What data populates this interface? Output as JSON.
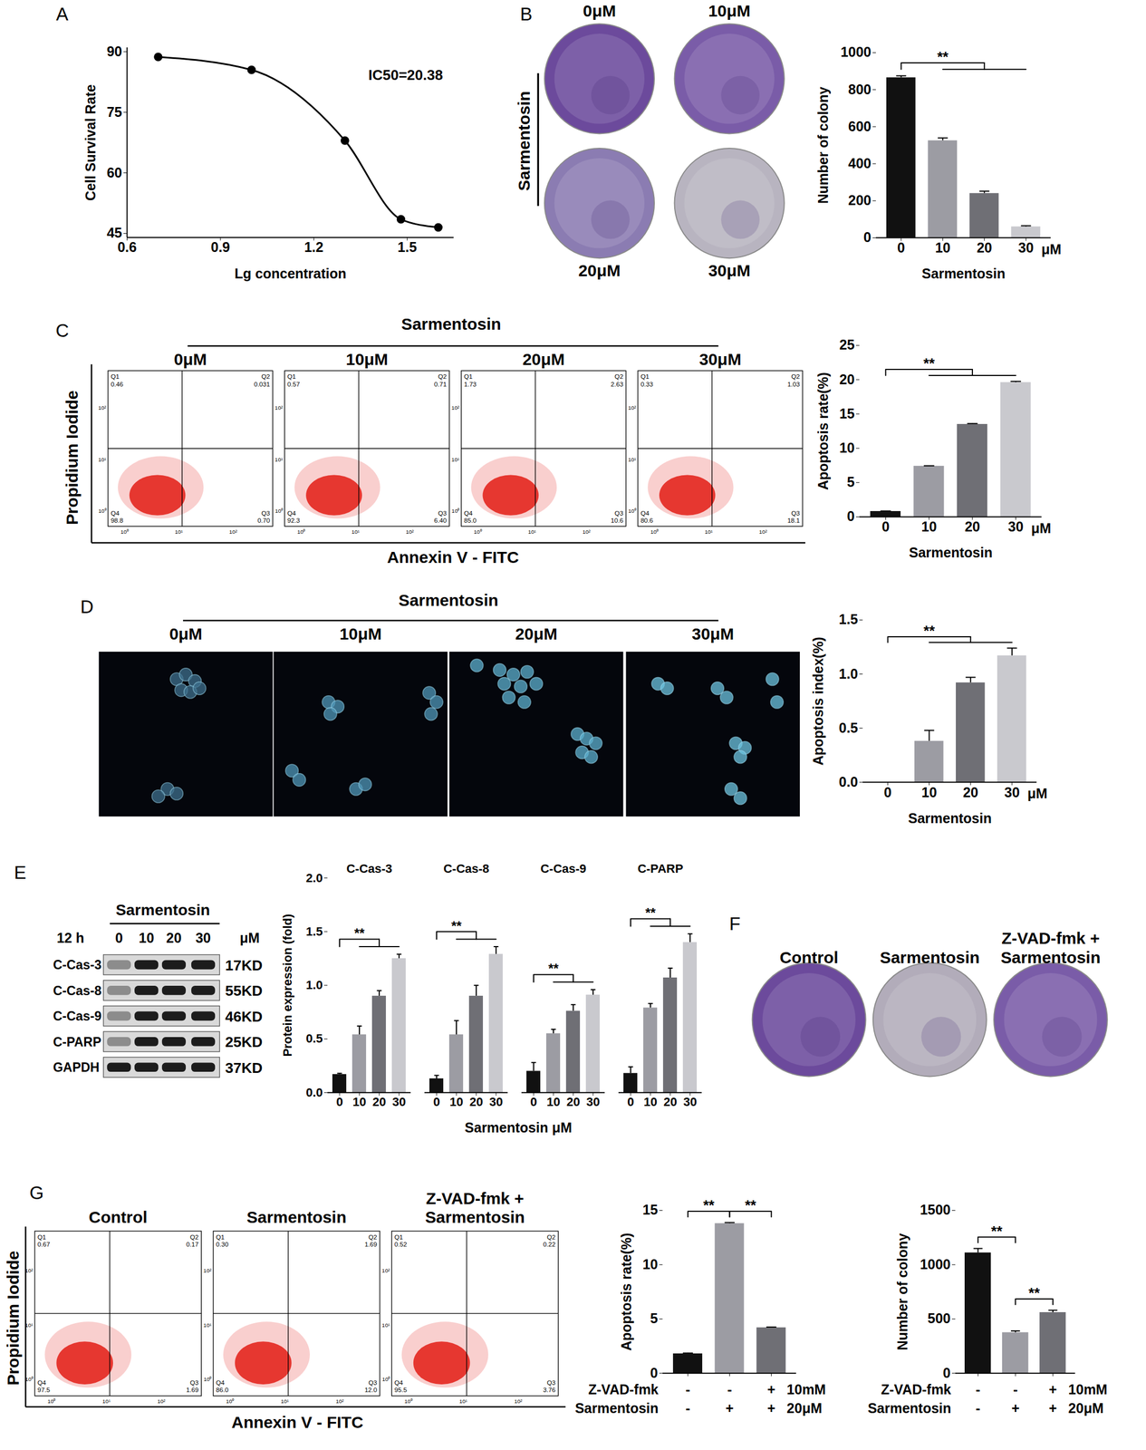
{
  "chart_data": [
    {
      "panel": "A",
      "type": "line",
      "xlabel": "Lg concentration",
      "ylabel": "Cell Survival Rate",
      "annotation": "IC50=20.38",
      "x": [
        0.7,
        1.0,
        1.3,
        1.48,
        1.6
      ],
      "values": [
        88.7,
        85.5,
        68,
        48.5,
        46.5
      ],
      "color": "#000000",
      "marker": "circle",
      "xlim": [
        0.6,
        1.65
      ],
      "ylim": [
        44,
        91
      ],
      "xticks": [
        0.6,
        0.9,
        1.2,
        1.5
      ],
      "yticks": [
        45,
        60,
        75,
        90
      ]
    },
    {
      "type": "bar",
      "categories": [
        "0",
        "10",
        "20",
        "30"
      ],
      "values": [
        865,
        525,
        240,
        60
      ],
      "errors": [
        10,
        14,
        12,
        5
      ],
      "colors": [
        "#111111",
        "#9c9ca3",
        "#6f6f75",
        "#c9c9ce"
      ],
      "ylabel": "Number of colony",
      "xlabel": "Sarmentosin",
      "x_unit": "μM",
      "ylim": [
        0,
        1000
      ],
      "yticks": [
        0,
        200,
        400,
        600,
        800,
        1000
      ],
      "significance": [
        {
          "from": 0,
          "to": [
            1,
            2,
            3
          ],
          "label": "**"
        }
      ]
    },
    {
      "type": "bar",
      "categories": [
        "0",
        "10",
        "20",
        "30"
      ],
      "values": [
        0.8,
        7.4,
        13.5,
        19.6
      ],
      "errors": [
        0.05,
        0.05,
        0.1,
        0.15
      ],
      "colors": [
        "#111111",
        "#9c9ca3",
        "#6f6f75",
        "#c9c9ce"
      ],
      "ylabel": "Apoptosis rate(%)",
      "xlabel": "Sarmentosin",
      "x_unit": "μM",
      "ylim": [
        0,
        25
      ],
      "yticks": [
        0,
        5,
        10,
        15,
        20,
        25
      ],
      "significance": [
        {
          "from": 0,
          "to": [
            1,
            2,
            3
          ],
          "label": "**"
        }
      ]
    },
    {
      "type": "bar",
      "categories": [
        "0",
        "10",
        "20",
        "30"
      ],
      "values": [
        0,
        0.38,
        0.92,
        1.17
      ],
      "errors": [
        0,
        0.1,
        0.05,
        0.07
      ],
      "colors": [
        "#111111",
        "#9c9ca3",
        "#6f6f75",
        "#c9c9ce"
      ],
      "ylabel": "Apoptosis index(%)",
      "xlabel": "Sarmentosin",
      "x_unit": "μM",
      "ylim": [
        0,
        1.5
      ],
      "yticks": [
        {
          "value": 0,
          "label": "0.0"
        },
        0.5,
        {
          "value": 1,
          "label": "1.0"
        },
        1.5
      ],
      "significance": [
        {
          "from": 0,
          "to": [
            1,
            2,
            3
          ],
          "label": "**"
        }
      ]
    },
    {
      "type": "bar",
      "categories": [
        "0",
        "10",
        "20",
        "30"
      ],
      "colors": [
        "#111111",
        "#9c9ca3",
        "#6f6f75",
        "#c9c9ce"
      ],
      "ylabel": "Protein expression (fold)",
      "xlabel": "Sarmentosin μM",
      "ylim": [
        0,
        2
      ],
      "yticks": [
        {
          "value": 0,
          "label": "0.0"
        },
        0.5,
        {
          "value": 1,
          "label": "1.0"
        },
        1.5,
        {
          "value": 2,
          "label": "2.0"
        }
      ],
      "groups": [
        {
          "name": "C-Cas-3",
          "values": [
            0.17,
            0.54,
            0.9,
            1.25
          ],
          "errors": [
            0.01,
            0.08,
            0.05,
            0.04
          ],
          "significance": [
            {
              "from": 0,
              "to": [
                1,
                2,
                3
              ],
              "label": "**"
            }
          ]
        },
        {
          "name": "C-Cas-8",
          "values": [
            0.13,
            0.54,
            0.9,
            1.29
          ],
          "errors": [
            0.03,
            0.13,
            0.1,
            0.07
          ],
          "significance": [
            {
              "from": 0,
              "to": [
                1,
                2,
                3
              ],
              "label": "**"
            }
          ]
        },
        {
          "name": "C-Cas-9",
          "values": [
            0.2,
            0.55,
            0.76,
            0.91
          ],
          "errors": [
            0.08,
            0.04,
            0.06,
            0.05
          ],
          "significance": [
            {
              "from": 0,
              "to": [
                1,
                2,
                3
              ],
              "label": "**"
            }
          ]
        },
        {
          "name": "C-PARP",
          "values": [
            0.18,
            0.79,
            1.07,
            1.4
          ],
          "errors": [
            0.06,
            0.04,
            0.09,
            0.08
          ],
          "significance": [
            {
              "from": 0,
              "to": [
                1,
                2,
                3
              ],
              "label": "**"
            }
          ]
        }
      ]
    },
    {
      "type": "bar",
      "categories": [
        null,
        null,
        null
      ],
      "tick_labels": "y",
      "values": [
        1.8,
        13.8,
        4.2
      ],
      "errors": [
        0.05,
        0.08,
        0.05
      ],
      "colors": [
        "#111111",
        "#9c9ca3",
        "#6f6f75"
      ],
      "ylabel": "Apoptosis rate(%)",
      "ylim": [
        0,
        15
      ],
      "yticks": [
        0,
        5,
        10,
        15
      ],
      "significance": [
        {
          "from": 0,
          "to": [
            1
          ],
          "label": "**"
        },
        {
          "from": 1,
          "to": [
            2
          ],
          "label": "**"
        }
      ],
      "conditions": [
        {
          "name": "Z-VAD-fmk",
          "values": [
            "-",
            "-",
            "+"
          ],
          "unit": "10mM"
        },
        {
          "name": "Sarmentosin",
          "values": [
            "-",
            "+",
            "+"
          ],
          "unit": "20μM"
        }
      ]
    },
    {
      "type": "bar",
      "categories": [
        null,
        null,
        null
      ],
      "tick_labels": "y",
      "values": [
        1110,
        375,
        560
      ],
      "errors": [
        40,
        15,
        20
      ],
      "colors": [
        "#111111",
        "#9c9ca3",
        "#6f6f75"
      ],
      "ylabel": "Number of colony",
      "ylim": [
        0,
        1500
      ],
      "yticks": [
        0,
        500,
        1000,
        1500
      ],
      "significance": [
        {
          "from": 0,
          "to": [
            1
          ],
          "label": "**"
        },
        {
          "from": 1,
          "to": [
            2
          ],
          "label": "**"
        }
      ],
      "conditions": [
        {
          "name": "Z-VAD-fmk",
          "values": [
            "-",
            "-",
            "+"
          ],
          "unit": "10mM"
        },
        {
          "name": "Sarmentosin",
          "values": [
            "-",
            "+",
            "+"
          ],
          "unit": "20μM"
        }
      ]
    }
  ],
  "images": {
    "B": {
      "panel": "B",
      "title_side": "Sarmentosin",
      "labels": [
        "0μM",
        "10μM",
        "20μM",
        "30μM"
      ]
    },
    "C": {
      "panel": "C",
      "title": "Sarmentosin",
      "labels": [
        "0μM",
        "10μM",
        "20μM",
        "30μM"
      ],
      "ylabel": "Propidium Iodide",
      "xlabel": "Annexin V - FITC",
      "axis_ticks": [
        "10⁰",
        "10¹",
        "10²"
      ],
      "quadrant_names": [
        "Q1",
        "Q2",
        "Q3",
        "Q4"
      ],
      "quadrants": [
        [
          "0.46",
          "0.031",
          "0.70",
          "98.8"
        ],
        [
          "0.57",
          "0.71",
          "6.40",
          "92.3"
        ],
        [
          "1.73",
          "2.63",
          "10.6",
          "85.0"
        ],
        [
          "0.33",
          "1.03",
          "18.1",
          "80.6"
        ]
      ]
    },
    "D": {
      "panel": "D",
      "title": "Sarmentosin",
      "labels": [
        "0μM",
        "10μM",
        "20μM",
        "30μM"
      ]
    },
    "E": {
      "panel": "E",
      "title": "Sarmentosin",
      "time": "12 h",
      "lanes": [
        "0",
        "10",
        "20",
        "30"
      ],
      "unit": "μM",
      "rows": [
        {
          "name": "C-Cas-3",
          "size": "17KD"
        },
        {
          "name": "C-Cas-8",
          "size": "55KD"
        },
        {
          "name": "C-Cas-9",
          "size": "46KD"
        },
        {
          "name": "C-PARP",
          "size": "25KD"
        },
        {
          "name": "GAPDH",
          "size": "37KD"
        }
      ]
    },
    "F": {
      "panel": "F",
      "labels": [
        "Control",
        "Sarmentosin",
        "Z-VAD-fmk + Sarmentosin"
      ]
    },
    "G": {
      "panel": "G",
      "labels": [
        "Control",
        "Sarmentosin",
        "Z-VAD-fmk + Sarmentosin"
      ],
      "ylabel": "Propidium Iodide",
      "xlabel": "Annexin V - FITC",
      "axis_ticks": [
        "10⁰",
        "10¹",
        "10²"
      ],
      "quadrant_names": [
        "Q1",
        "Q2",
        "Q3",
        "Q4"
      ],
      "quadrants": [
        [
          "0.67",
          "0.17",
          "1.69",
          "97.5"
        ],
        [
          "0.30",
          "1.69",
          "12.0",
          "86.0"
        ],
        [
          "0.52",
          "0.22",
          "3.76",
          "95.5"
        ]
      ]
    }
  }
}
